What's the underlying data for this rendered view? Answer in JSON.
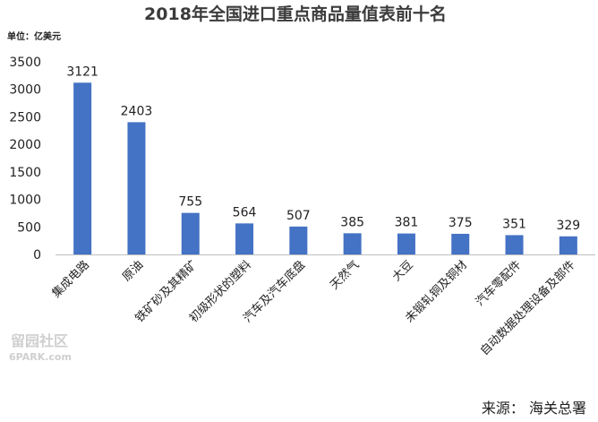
{
  "watermark": {
    "line1": "留园社区",
    "line2": "6PARK.com"
  },
  "chart_data": {
    "type": "bar",
    "title": "2018年全国进口重点商品量值表前十名",
    "unit_label": "单位：亿美元",
    "source": "来源：  海关总署",
    "categories": [
      "集成电路",
      "原油",
      "铁矿砂及其精矿",
      "初级形状的塑料",
      "汽车及汽车底盘",
      "天然气",
      "大豆",
      "未锻轧铜及铜材",
      "汽车零配件",
      "自动数据处理设备及部件"
    ],
    "values": [
      3121,
      2403,
      755,
      564,
      507,
      385,
      381,
      375,
      351,
      329
    ],
    "ylim": [
      0,
      3500
    ],
    "yticks": [
      0,
      500,
      1000,
      1500,
      2000,
      2500,
      3000,
      3500
    ],
    "colors": {
      "bar": "#4472c4"
    },
    "grid": false
  }
}
